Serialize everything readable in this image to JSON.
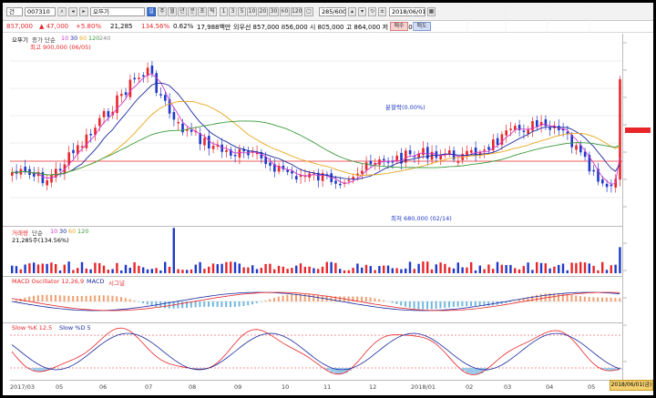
{
  "toolbar": {
    "mode": "건",
    "code": "007310",
    "name": "오뚜기",
    "period_buttons": [
      "주",
      "월",
      "년",
      "분",
      "초",
      "틱"
    ],
    "numbers": [
      "1",
      "3",
      "5",
      "10",
      "20",
      "30",
      "60",
      "120"
    ],
    "count": "285/600",
    "date": "2018/06/01"
  },
  "quote": {
    "price": "857,000",
    "change": "▲ 47,000",
    "rate": "+5.80%",
    "volume": "21,285",
    "vol_rate": "134.56%",
    "turnover": "0.62%",
    "amount": "17,988백만",
    "detail": "외우선 857,000 856,000 시 805,000 고 864,000 저 805,000",
    "buy_label": "매수",
    "sell_label": "매도"
  },
  "price_panel": {
    "stock_label": "오뚜기",
    "ma_label": "종가 단순",
    "ma_periods": [
      "10",
      "30",
      "60",
      "120",
      "240"
    ],
    "high_label": "최고 900,000 (06/05)",
    "low_label": "최저 680,000 (02/14)",
    "mark_label": "분할락(0.00%)"
  },
  "volume_panel": {
    "label": "거래량",
    "ma_label": "단순",
    "ma_periods": [
      "10",
      "30",
      "60",
      "120"
    ],
    "value_label": "21,285주(134.56%)"
  },
  "macd_panel": {
    "label": "MACD Oscillator 12,26,9",
    "macd_label": "MACD",
    "signal_label": "시그널"
  },
  "slow_panel": {
    "label": "Slow %K 12,5",
    "d_label": "Slow %D 5"
  },
  "x_axis": {
    "labels": [
      "2017/03",
      "05",
      "06",
      "07",
      "08",
      "09",
      "10",
      "11",
      "12",
      "2018/01",
      "02",
      "03",
      "04",
      "05"
    ],
    "current_date": "2018/06/01(금)"
  },
  "colors": {
    "up": "#e8262a",
    "down": "#1f39c8",
    "ma10": "#d03cc8",
    "ma30": "#1a2aa0",
    "ma60": "#e8a820",
    "ma120": "#3c9a3c",
    "ma240": "#a0a0a0"
  }
}
